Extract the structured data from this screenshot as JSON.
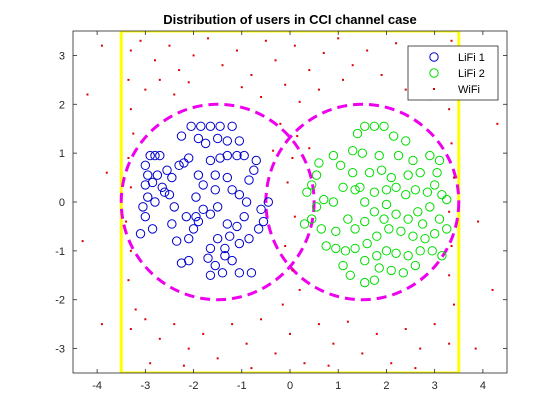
{
  "chart_data": {
    "type": "scatter",
    "title": "Distribution of users in CCI channel case",
    "xlabel": "",
    "ylabel": "",
    "xlim": [
      -4.5,
      4.5
    ],
    "ylim": [
      -3.5,
      3.5
    ],
    "xticks": [
      -4,
      -3,
      -2,
      -1,
      0,
      1,
      2,
      3,
      4
    ],
    "yticks": [
      -3,
      -2,
      -1,
      0,
      1,
      2,
      3
    ],
    "grid": false,
    "legend": {
      "position": "top-right",
      "entries": [
        "LiFi 1",
        "LiFi 2",
        "WiFi"
      ]
    },
    "colors": {
      "lifi1": "#0000cc",
      "lifi2": "#00dd00",
      "wifi": "#dd0000",
      "coverage_circle": "#ee00ee",
      "room_boundary": "#ffff00",
      "axes": "#262626"
    },
    "room_boundary": {
      "x": [
        -3.5,
        3.5
      ],
      "y": [
        -3.5,
        3.5
      ]
    },
    "coverage_circles": [
      {
        "name": "LiFi 1 cell",
        "center": [
          -1.5,
          0
        ],
        "radius": 2
      },
      {
        "name": "LiFi 2 cell",
        "center": [
          1.5,
          0
        ],
        "radius": 2
      }
    ],
    "series": [
      {
        "name": "LiFi 1",
        "marker": "circle-open",
        "points": [
          [
            -2.8,
            0.95
          ],
          [
            -2.9,
            0.95
          ],
          [
            -2.7,
            0.95
          ],
          [
            -3.0,
            0.75
          ],
          [
            -2.95,
            0.55
          ],
          [
            -2.75,
            0.55
          ],
          [
            -3.0,
            0.35
          ],
          [
            -2.85,
            0.4
          ],
          [
            -2.55,
            0.65
          ],
          [
            -2.45,
            0.5
          ],
          [
            -2.6,
            0.2
          ],
          [
            -2.8,
            0.0
          ],
          [
            -2.95,
            0.1
          ],
          [
            -3.05,
            -0.1
          ],
          [
            -3.0,
            -0.3
          ],
          [
            -2.85,
            -0.55
          ],
          [
            -3.1,
            -0.65
          ],
          [
            -2.45,
            -0.45
          ],
          [
            -2.4,
            -0.1
          ],
          [
            -2.5,
            0.15
          ],
          [
            -2.3,
            0.75
          ],
          [
            -2.2,
            0.8
          ],
          [
            -2.1,
            0.9
          ],
          [
            -2.25,
            1.35
          ],
          [
            -2.05,
            1.55
          ],
          [
            -1.85,
            1.55
          ],
          [
            -1.65,
            1.55
          ],
          [
            -1.45,
            1.55
          ],
          [
            -1.2,
            1.55
          ],
          [
            -1.9,
            1.3
          ],
          [
            -1.75,
            1.2
          ],
          [
            -1.5,
            1.3
          ],
          [
            -1.3,
            1.25
          ],
          [
            -1.05,
            1.25
          ],
          [
            -1.1,
            0.95
          ],
          [
            -0.95,
            0.95
          ],
          [
            -1.3,
            0.95
          ],
          [
            -1.45,
            0.9
          ],
          [
            -1.65,
            0.85
          ],
          [
            -1.9,
            0.55
          ],
          [
            -1.8,
            0.35
          ],
          [
            -1.95,
            0.1
          ],
          [
            -1.8,
            -0.15
          ],
          [
            -1.95,
            -0.3
          ],
          [
            -2.0,
            -0.55
          ],
          [
            -2.1,
            -0.75
          ],
          [
            -1.65,
            -0.25
          ],
          [
            -1.5,
            -0.1
          ],
          [
            -1.55,
            0.25
          ],
          [
            -1.55,
            0.55
          ],
          [
            -1.3,
            0.5
          ],
          [
            -1.2,
            0.25
          ],
          [
            -1.05,
            0.15
          ],
          [
            -0.9,
            0.0
          ],
          [
            -0.95,
            -0.3
          ],
          [
            -1.1,
            -0.5
          ],
          [
            -1.3,
            -0.45
          ],
          [
            -1.25,
            -0.7
          ],
          [
            -1.5,
            -0.75
          ],
          [
            -1.65,
            -0.95
          ],
          [
            -1.35,
            -0.95
          ],
          [
            -1.05,
            -0.85
          ],
          [
            -0.85,
            -0.75
          ],
          [
            -0.65,
            -0.55
          ],
          [
            -0.55,
            -0.4
          ],
          [
            -0.6,
            -0.15
          ],
          [
            -0.85,
            0.45
          ],
          [
            -0.75,
            0.65
          ],
          [
            -0.7,
            0.85
          ],
          [
            -0.45,
            0.0
          ],
          [
            -1.7,
            -1.15
          ],
          [
            -1.55,
            -1.3
          ],
          [
            -1.35,
            -1.1
          ],
          [
            -2.1,
            -1.2
          ],
          [
            -2.25,
            -1.25
          ],
          [
            -1.65,
            -1.5
          ],
          [
            -1.4,
            -1.45
          ],
          [
            -1.05,
            -1.45
          ],
          [
            -0.8,
            -1.45
          ],
          [
            -1.2,
            -1.2
          ],
          [
            -1.9,
            -0.4
          ],
          [
            -2.15,
            -0.3
          ],
          [
            -2.35,
            -0.8
          ],
          [
            -2.65,
            0.3
          ]
        ]
      },
      {
        "name": "LiFi 2",
        "marker": "circle-open",
        "points": [
          [
            1.55,
            1.55
          ],
          [
            1.75,
            1.55
          ],
          [
            1.95,
            1.55
          ],
          [
            1.4,
            1.4
          ],
          [
            2.15,
            1.35
          ],
          [
            1.3,
            1.05
          ],
          [
            1.5,
            1.0
          ],
          [
            1.85,
            0.95
          ],
          [
            2.25,
            0.95
          ],
          [
            2.4,
            1.25
          ],
          [
            2.55,
            0.85
          ],
          [
            2.9,
            0.95
          ],
          [
            3.1,
            0.85
          ],
          [
            1.05,
            0.75
          ],
          [
            1.3,
            0.6
          ],
          [
            1.65,
            0.6
          ],
          [
            1.9,
            0.65
          ],
          [
            2.1,
            0.5
          ],
          [
            2.45,
            0.55
          ],
          [
            2.7,
            0.6
          ],
          [
            3.0,
            0.35
          ],
          [
            3.15,
            0.15
          ],
          [
            3.25,
            0.05
          ],
          [
            2.85,
            0.2
          ],
          [
            2.6,
            0.25
          ],
          [
            2.4,
            0.15
          ],
          [
            2.2,
            0.3
          ],
          [
            2.0,
            0.25
          ],
          [
            1.75,
            0.2
          ],
          [
            1.55,
            0.0
          ],
          [
            1.35,
            0.25
          ],
          [
            1.1,
            0.3
          ],
          [
            0.9,
            0.0
          ],
          [
            0.7,
            0.05
          ],
          [
            0.55,
            -0.1
          ],
          [
            0.45,
            0.35
          ],
          [
            0.55,
            0.55
          ],
          [
            0.6,
            0.8
          ],
          [
            0.45,
            -0.35
          ],
          [
            0.65,
            -0.55
          ],
          [
            0.95,
            -0.6
          ],
          [
            1.2,
            -0.35
          ],
          [
            1.35,
            -0.55
          ],
          [
            1.55,
            -0.4
          ],
          [
            1.75,
            -0.2
          ],
          [
            2.0,
            -0.05
          ],
          [
            2.2,
            -0.25
          ],
          [
            2.45,
            -0.35
          ],
          [
            2.65,
            -0.2
          ],
          [
            2.9,
            -0.1
          ],
          [
            3.1,
            -0.35
          ],
          [
            3.25,
            -0.55
          ],
          [
            3.0,
            -0.65
          ],
          [
            2.8,
            -0.75
          ],
          [
            2.55,
            -0.7
          ],
          [
            2.3,
            -0.6
          ],
          [
            2.05,
            -0.55
          ],
          [
            1.8,
            -0.7
          ],
          [
            1.6,
            -0.85
          ],
          [
            1.35,
            -0.95
          ],
          [
            1.15,
            -1.0
          ],
          [
            0.95,
            -0.95
          ],
          [
            0.75,
            -0.9
          ],
          [
            1.1,
            -1.3
          ],
          [
            1.55,
            -1.2
          ],
          [
            1.8,
            -1.1
          ],
          [
            2.0,
            -1.0
          ],
          [
            2.2,
            -1.05
          ],
          [
            2.45,
            -1.1
          ],
          [
            2.7,
            -1.0
          ],
          [
            2.95,
            -1.0
          ],
          [
            3.15,
            -1.1
          ],
          [
            1.85,
            -1.35
          ],
          [
            1.75,
            -1.6
          ],
          [
            1.55,
            -1.65
          ],
          [
            1.25,
            -1.5
          ],
          [
            2.1,
            -1.4
          ],
          [
            2.35,
            -1.45
          ],
          [
            2.6,
            -1.3
          ],
          [
            0.35,
            0.2
          ],
          [
            0.3,
            -0.45
          ],
          [
            0.9,
            0.95
          ],
          [
            1.45,
            0.3
          ],
          [
            2.75,
            -0.45
          ],
          [
            3.05,
            0.6
          ],
          [
            1.95,
            -0.35
          ]
        ]
      },
      {
        "name": "WiFi",
        "marker": "dot",
        "points": [
          [
            -3.3,
            3.1
          ],
          [
            -3.1,
            3.3
          ],
          [
            -2.8,
            2.9
          ],
          [
            -2.5,
            3.2
          ],
          [
            -2.3,
            2.7
          ],
          [
            -2.0,
            3.0
          ],
          [
            -1.7,
            3.35
          ],
          [
            -1.4,
            2.8
          ],
          [
            -1.1,
            3.1
          ],
          [
            -0.8,
            2.6
          ],
          [
            -0.5,
            3.3
          ],
          [
            -0.3,
            2.9
          ],
          [
            0.1,
            3.2
          ],
          [
            0.4,
            2.7
          ],
          [
            0.7,
            3.05
          ],
          [
            1.0,
            3.35
          ],
          [
            1.3,
            2.8
          ],
          [
            1.6,
            3.1
          ],
          [
            1.9,
            2.6
          ],
          [
            2.2,
            3.25
          ],
          [
            2.5,
            2.9
          ],
          [
            2.8,
            3.1
          ],
          [
            3.1,
            2.7
          ],
          [
            3.35,
            3.3
          ],
          [
            -3.35,
            2.5
          ],
          [
            -3.0,
            2.3
          ],
          [
            -2.7,
            2.5
          ],
          [
            -2.4,
            2.2
          ],
          [
            -2.1,
            2.45
          ],
          [
            -1.0,
            2.35
          ],
          [
            -0.6,
            2.15
          ],
          [
            -0.1,
            2.4
          ],
          [
            0.2,
            2.05
          ],
          [
            0.6,
            2.3
          ],
          [
            1.1,
            2.5
          ],
          [
            2.4,
            2.3
          ],
          [
            2.9,
            2.1
          ],
          [
            3.2,
            2.4
          ],
          [
            -3.3,
            1.9
          ],
          [
            -3.25,
            1.4
          ],
          [
            -3.35,
            0.9
          ],
          [
            -3.3,
            0.3
          ],
          [
            -3.4,
            -0.4
          ],
          [
            -3.3,
            -1.0
          ],
          [
            -3.35,
            -1.6
          ],
          [
            -3.2,
            -2.2
          ],
          [
            3.3,
            1.9
          ],
          [
            3.35,
            1.2
          ],
          [
            3.4,
            0.5
          ],
          [
            3.3,
            -0.2
          ],
          [
            3.35,
            -0.9
          ],
          [
            3.3,
            -1.5
          ],
          [
            3.4,
            -2.1
          ],
          [
            -0.2,
            1.6
          ],
          [
            0.15,
            1.35
          ],
          [
            0.05,
            0.9
          ],
          [
            -0.05,
            0.4
          ],
          [
            0.1,
            -0.3
          ],
          [
            -0.1,
            -0.9
          ],
          [
            0.05,
            -1.4
          ],
          [
            0.2,
            -1.8
          ],
          [
            -0.15,
            -2.1
          ],
          [
            -3.3,
            -2.6
          ],
          [
            -3.0,
            -2.4
          ],
          [
            -2.7,
            -2.8
          ],
          [
            -2.4,
            -2.5
          ],
          [
            -2.1,
            -3.0
          ],
          [
            -1.8,
            -2.7
          ],
          [
            -1.5,
            -3.2
          ],
          [
            -1.2,
            -2.5
          ],
          [
            -0.9,
            -2.9
          ],
          [
            -0.6,
            -2.4
          ],
          [
            -0.3,
            -3.1
          ],
          [
            0.0,
            -2.7
          ],
          [
            0.3,
            -3.3
          ],
          [
            0.6,
            -2.5
          ],
          [
            0.9,
            -2.9
          ],
          [
            1.2,
            -2.45
          ],
          [
            1.5,
            -3.1
          ],
          [
            1.8,
            -2.7
          ],
          [
            2.1,
            -3.3
          ],
          [
            2.4,
            -2.6
          ],
          [
            2.7,
            -3.0
          ],
          [
            3.0,
            -2.5
          ],
          [
            3.3,
            -2.9
          ],
          [
            -2.9,
            -3.3
          ],
          [
            -2.2,
            -3.35
          ],
          [
            -0.8,
            -3.4
          ],
          [
            0.8,
            -3.35
          ],
          [
            2.6,
            -3.4
          ],
          [
            -3.9,
            3.2
          ],
          [
            -4.2,
            2.2
          ],
          [
            -3.8,
            0.6
          ],
          [
            -4.3,
            -0.8
          ],
          [
            -3.9,
            -2.5
          ],
          [
            4.0,
            3.0
          ],
          [
            4.3,
            1.6
          ],
          [
            3.9,
            -0.4
          ],
          [
            4.2,
            -1.8
          ],
          [
            3.85,
            -3.0
          ],
          [
            0.4,
            1.1
          ],
          [
            -0.35,
            1.05
          ]
        ]
      }
    ]
  }
}
